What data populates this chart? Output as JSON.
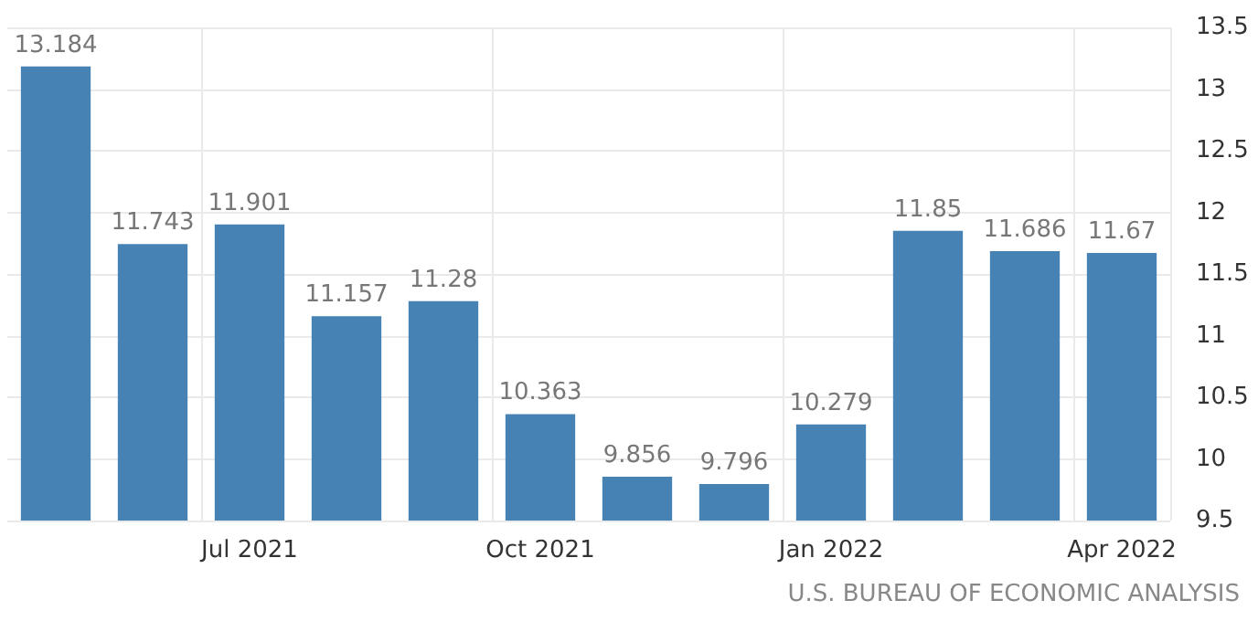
{
  "chart_data": {
    "type": "bar",
    "categories": [
      null,
      null,
      "Jul 2021",
      null,
      null,
      "Oct 2021",
      null,
      null,
      "Jan 2022",
      null,
      null,
      "Apr 2022"
    ],
    "values": [
      13.184,
      11.743,
      11.901,
      11.157,
      11.28,
      10.363,
      9.856,
      9.796,
      10.279,
      11.85,
      11.686,
      11.67
    ],
    "color": "#4682b4",
    "ylim": [
      9.5,
      13.5
    ],
    "yticks": [
      9.5,
      10,
      10.5,
      11,
      11.5,
      12,
      12.5,
      13,
      13.5
    ],
    "grid": true,
    "data_labels": true,
    "annotations": [
      "U.S. BUREAU OF ECONOMIC ANALYSIS"
    ]
  }
}
